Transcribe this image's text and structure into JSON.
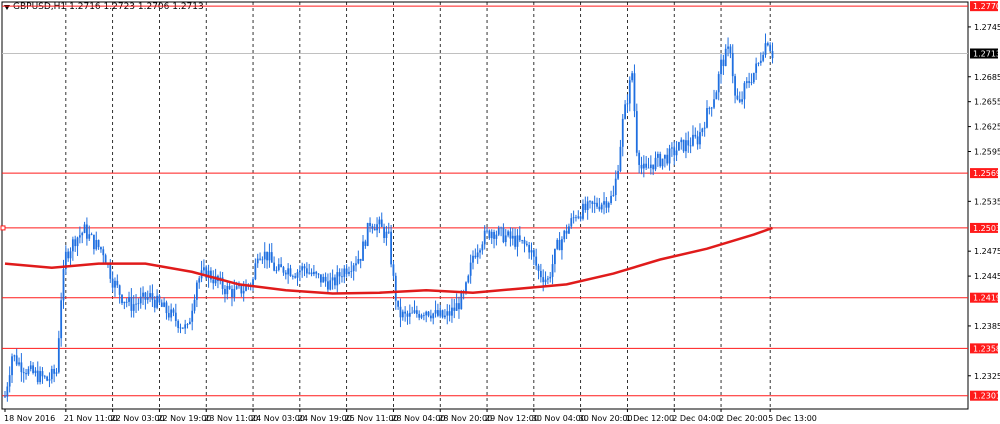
{
  "window": {
    "symbol_label": "GBPUSD,H1",
    "ohlc_label": "1.2716 1.2723 1.2706 1.2713"
  },
  "colors": {
    "background": "#ffffff",
    "candle": "#1f6fe0",
    "level_line": "#ff1a1a",
    "moving_average": "#e01b1b",
    "grid": "#000000",
    "price_line": "#c0c0c0"
  },
  "chart_data": {
    "type": "candlestick",
    "symbol": "GBPUSD",
    "timeframe": "H1",
    "ylim": [
      1.2285,
      1.2775
    ],
    "y_ticks": [
      "1.2745",
      "1.2685",
      "1.2655",
      "1.2625",
      "1.2595",
      "1.2535",
      "1.2475",
      "1.2445",
      "1.2385",
      "1.2325"
    ],
    "y_tick_values": [
      1.2745,
      1.2685,
      1.2655,
      1.2625,
      1.2595,
      1.2535,
      1.2475,
      1.2445,
      1.2385,
      1.2325
    ],
    "x_ticks": [
      "18 Nov 2016",
      "21 Nov 11:00",
      "22 Nov 03:00",
      "22 Nov 19:00",
      "23 Nov 11:00",
      "24 Nov 03:00",
      "24 Nov 19:00",
      "25 Nov 11:00",
      "28 Nov 04:00",
      "28 Nov 20:00",
      "29 Nov 12:00",
      "30 Nov 04:00",
      "30 Nov 20:00",
      "1 Dec 12:00",
      "2 Dec 04:00",
      "2 Dec 20:00",
      "5 Dec 13:00"
    ],
    "x_tick_index": [
      0,
      26,
      46,
      66,
      86,
      106,
      126,
      146,
      166,
      186,
      206,
      226,
      246,
      266,
      286,
      306,
      327
    ],
    "grid": true,
    "current_price": 1.2713,
    "current_price_label": "1.2713",
    "levels": [
      {
        "value": 1.277,
        "label": "1.2770"
      },
      {
        "value": 1.2569,
        "label": "1.2569"
      },
      {
        "value": 1.2503,
        "label": "1.2503"
      },
      {
        "value": 1.2419,
        "label": "1.2419"
      },
      {
        "value": 1.2358,
        "label": "1.2358"
      },
      {
        "value": 1.2301,
        "label": "1.2301"
      }
    ],
    "close_path": [
      [
        0,
        1.23
      ],
      [
        3,
        1.235
      ],
      [
        6,
        1.234
      ],
      [
        10,
        1.233
      ],
      [
        14,
        1.2325
      ],
      [
        18,
        1.232
      ],
      [
        22,
        1.233
      ],
      [
        24,
        1.242
      ],
      [
        26,
        1.247
      ],
      [
        28,
        1.248
      ],
      [
        30,
        1.249
      ],
      [
        34,
        1.25
      ],
      [
        38,
        1.2485
      ],
      [
        42,
        1.2475
      ],
      [
        46,
        1.244
      ],
      [
        50,
        1.242
      ],
      [
        54,
        1.241
      ],
      [
        58,
        1.2415
      ],
      [
        62,
        1.242
      ],
      [
        66,
        1.241
      ],
      [
        70,
        1.24
      ],
      [
        74,
        1.239
      ],
      [
        78,
        1.238
      ],
      [
        82,
        1.244
      ],
      [
        86,
        1.245
      ],
      [
        90,
        1.244
      ],
      [
        94,
        1.243
      ],
      [
        98,
        1.2425
      ],
      [
        102,
        1.243
      ],
      [
        106,
        1.244
      ],
      [
        108,
        1.2475
      ],
      [
        112,
        1.247
      ],
      [
        116,
        1.245
      ],
      [
        120,
        1.2455
      ],
      [
        124,
        1.245
      ],
      [
        128,
        1.2455
      ],
      [
        132,
        1.2445
      ],
      [
        136,
        1.244
      ],
      [
        140,
        1.2435
      ],
      [
        144,
        1.245
      ],
      [
        148,
        1.246
      ],
      [
        152,
        1.247
      ],
      [
        156,
        1.251
      ],
      [
        160,
        1.2505
      ],
      [
        164,
        1.249
      ],
      [
        166,
        1.244
      ],
      [
        168,
        1.24
      ],
      [
        172,
        1.2395
      ],
      [
        176,
        1.24
      ],
      [
        180,
        1.2405
      ],
      [
        184,
        1.2398
      ],
      [
        188,
        1.2395
      ],
      [
        192,
        1.2405
      ],
      [
        196,
        1.242
      ],
      [
        198,
        1.244
      ],
      [
        200,
        1.247
      ],
      [
        204,
        1.249
      ],
      [
        208,
        1.25
      ],
      [
        212,
        1.2495
      ],
      [
        216,
        1.249
      ],
      [
        220,
        1.2485
      ],
      [
        224,
        1.248
      ],
      [
        228,
        1.245
      ],
      [
        232,
        1.244
      ],
      [
        236,
        1.248
      ],
      [
        240,
        1.25
      ],
      [
        244,
        1.252
      ],
      [
        248,
        1.2525
      ],
      [
        252,
        1.253
      ],
      [
        256,
        1.2535
      ],
      [
        260,
        1.254
      ],
      [
        262,
        1.258
      ],
      [
        264,
        1.263
      ],
      [
        266,
        1.266
      ],
      [
        268,
        1.269
      ],
      [
        270,
        1.26
      ],
      [
        272,
        1.2575
      ],
      [
        274,
        1.257
      ],
      [
        276,
        1.258
      ],
      [
        280,
        1.2585
      ],
      [
        284,
        1.259
      ],
      [
        288,
        1.26
      ],
      [
        292,
        1.2605
      ],
      [
        296,
        1.261
      ],
      [
        300,
        1.264
      ],
      [
        304,
        1.267
      ],
      [
        306,
        1.27
      ],
      [
        310,
        1.272
      ],
      [
        312,
        1.266
      ],
      [
        314,
        1.265
      ],
      [
        316,
        1.267
      ],
      [
        318,
        1.268
      ],
      [
        320,
        1.269
      ],
      [
        322,
        1.27
      ],
      [
        324,
        1.272
      ],
      [
        326,
        1.273
      ],
      [
        328,
        1.2713
      ]
    ],
    "moving_average": [
      [
        0,
        1.246
      ],
      [
        20,
        1.2455
      ],
      [
        40,
        1.246
      ],
      [
        60,
        1.246
      ],
      [
        80,
        1.245
      ],
      [
        100,
        1.2435
      ],
      [
        120,
        1.2428
      ],
      [
        140,
        1.2424
      ],
      [
        160,
        1.2425
      ],
      [
        180,
        1.2428
      ],
      [
        200,
        1.2425
      ],
      [
        220,
        1.243
      ],
      [
        240,
        1.2435
      ],
      [
        260,
        1.2448
      ],
      [
        280,
        1.2465
      ],
      [
        300,
        1.2478
      ],
      [
        320,
        1.2495
      ],
      [
        328,
        1.2503
      ]
    ]
  }
}
